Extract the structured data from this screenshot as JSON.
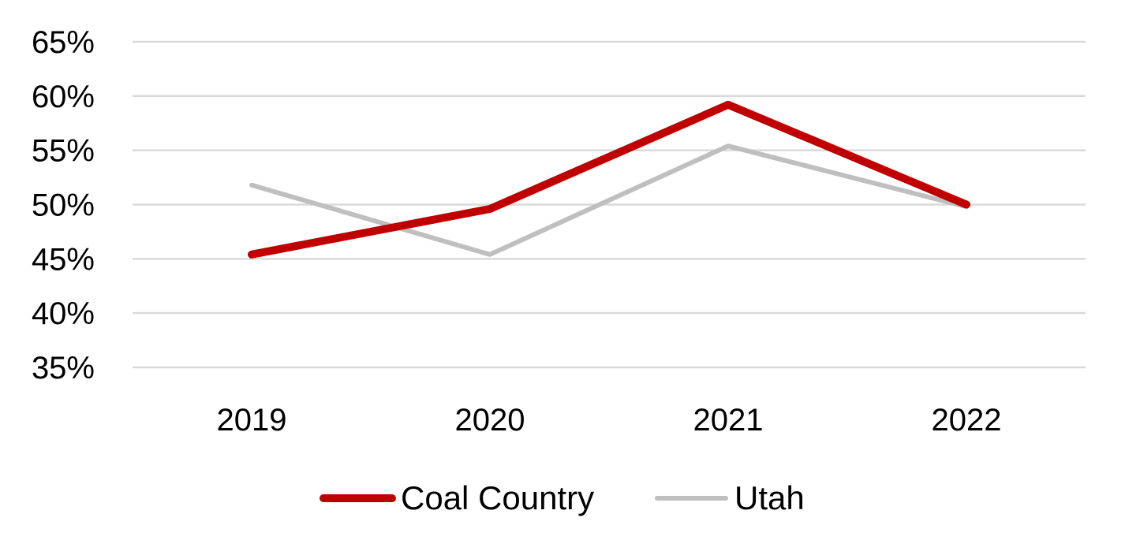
{
  "chart_data": {
    "type": "line",
    "title": "",
    "xlabel": "",
    "ylabel": "",
    "categories": [
      "2019",
      "2020",
      "2021",
      "2022"
    ],
    "ylim": [
      35,
      65
    ],
    "y_ticks": [
      35,
      40,
      45,
      50,
      55,
      60,
      65
    ],
    "y_tick_labels": [
      "35%",
      "40%",
      "45%",
      "50%",
      "55%",
      "60%",
      "65%"
    ],
    "grid": true,
    "legend_position": "bottom",
    "series": [
      {
        "name": "Coal Country",
        "color": "#c00000",
        "values": [
          45.4,
          49.6,
          59.2,
          50.0
        ]
      },
      {
        "name": "Utah",
        "color": "#bfbfbf",
        "values": [
          51.8,
          45.4,
          55.4,
          49.8
        ]
      }
    ]
  }
}
